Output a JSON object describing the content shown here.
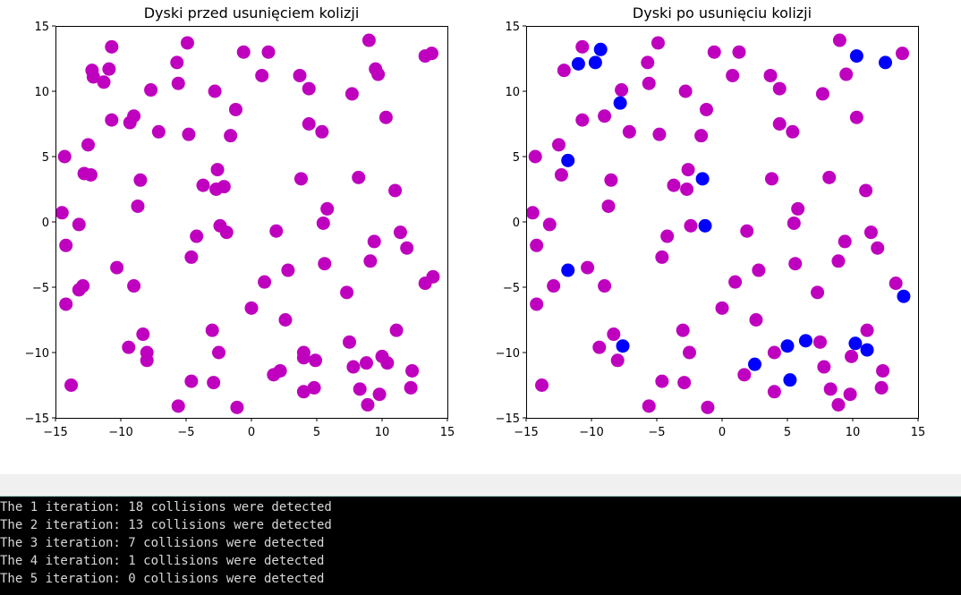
{
  "colors": {
    "disk": "#bf00bf",
    "moved_disk": "#0000ff",
    "console_bg": "#000000",
    "console_text": "#d8d8d8"
  },
  "chart_data": [
    {
      "type": "scatter",
      "title": "Dyski przed usunięciem kolizji",
      "xlim": [
        -15,
        15
      ],
      "ylim": [
        -15,
        15
      ],
      "xticks": [
        -15,
        -10,
        -5,
        0,
        5,
        10,
        15
      ],
      "yticks": [
        -15,
        -10,
        -5,
        0,
        5,
        10,
        15
      ],
      "grid": false,
      "series": [
        {
          "color": "#bf00bf",
          "points": [
            [
              -14.5,
              0.7
            ],
            [
              -14.3,
              5.0
            ],
            [
              -14.2,
              -1.8
            ],
            [
              -14.2,
              -6.3
            ],
            [
              -13.8,
              -12.5
            ],
            [
              -13.2,
              -0.2
            ],
            [
              -13.2,
              -5.2
            ],
            [
              -12.9,
              -4.9
            ],
            [
              -12.8,
              3.7
            ],
            [
              -12.5,
              5.9
            ],
            [
              -12.3,
              3.6
            ],
            [
              -12.2,
              11.6
            ],
            [
              -12.1,
              11.1
            ],
            [
              -11.3,
              10.7
            ],
            [
              -10.9,
              11.7
            ],
            [
              -10.7,
              13.4
            ],
            [
              -10.7,
              7.8
            ],
            [
              -10.3,
              -3.5
            ],
            [
              -9.4,
              -9.6
            ],
            [
              -9.3,
              7.6
            ],
            [
              -9.0,
              8.1
            ],
            [
              -9.0,
              -4.9
            ],
            [
              -8.7,
              1.2
            ],
            [
              -8.5,
              3.2
            ],
            [
              -8.3,
              -8.6
            ],
            [
              -8.0,
              -10.0
            ],
            [
              -8.0,
              -10.6
            ],
            [
              -7.7,
              10.1
            ],
            [
              -7.1,
              6.9
            ],
            [
              -5.7,
              12.2
            ],
            [
              -5.6,
              10.6
            ],
            [
              -5.6,
              -14.1
            ],
            [
              -4.9,
              13.7
            ],
            [
              -4.8,
              6.7
            ],
            [
              -4.6,
              -12.2
            ],
            [
              -4.6,
              -2.7
            ],
            [
              -4.2,
              -1.1
            ],
            [
              -3.7,
              2.8
            ],
            [
              -3.0,
              -8.3
            ],
            [
              -2.9,
              -12.3
            ],
            [
              -2.8,
              10.0
            ],
            [
              -2.7,
              2.5
            ],
            [
              -2.6,
              4.0
            ],
            [
              -2.5,
              -10.0
            ],
            [
              -2.4,
              -0.3
            ],
            [
              -2.1,
              2.7
            ],
            [
              -1.9,
              -0.8
            ],
            [
              -1.6,
              6.6
            ],
            [
              -1.2,
              8.6
            ],
            [
              -1.1,
              -14.2
            ],
            [
              -0.6,
              13.0
            ],
            [
              0.0,
              -6.6
            ],
            [
              0.8,
              11.2
            ],
            [
              1.0,
              -4.6
            ],
            [
              1.3,
              13.0
            ],
            [
              1.7,
              -11.7
            ],
            [
              1.9,
              -0.7
            ],
            [
              2.2,
              -11.4
            ],
            [
              2.6,
              -7.5
            ],
            [
              2.8,
              -3.7
            ],
            [
              3.7,
              11.2
            ],
            [
              3.8,
              3.3
            ],
            [
              4.0,
              -10.0
            ],
            [
              4.0,
              -10.4
            ],
            [
              4.0,
              -13.0
            ],
            [
              4.4,
              10.2
            ],
            [
              4.4,
              7.5
            ],
            [
              4.8,
              -12.7
            ],
            [
              4.9,
              -10.6
            ],
            [
              5.4,
              6.9
            ],
            [
              5.5,
              -0.1
            ],
            [
              5.6,
              -3.2
            ],
            [
              5.8,
              1.0
            ],
            [
              7.3,
              -5.4
            ],
            [
              7.5,
              -9.2
            ],
            [
              7.7,
              9.8
            ],
            [
              7.8,
              -11.1
            ],
            [
              8.2,
              3.4
            ],
            [
              8.3,
              -12.8
            ],
            [
              8.8,
              -10.8
            ],
            [
              8.9,
              -14.0
            ],
            [
              9.0,
              13.9
            ],
            [
              9.1,
              -3.0
            ],
            [
              9.4,
              -1.5
            ],
            [
              9.5,
              11.7
            ],
            [
              9.7,
              11.3
            ],
            [
              9.8,
              -13.2
            ],
            [
              10.0,
              -10.3
            ],
            [
              10.3,
              8.0
            ],
            [
              10.4,
              -10.8
            ],
            [
              11.0,
              2.4
            ],
            [
              11.1,
              -8.3
            ],
            [
              11.4,
              -0.8
            ],
            [
              11.9,
              -2.0
            ],
            [
              12.2,
              -12.7
            ],
            [
              12.3,
              -11.4
            ],
            [
              13.3,
              12.7
            ],
            [
              13.3,
              -4.7
            ],
            [
              13.8,
              12.9
            ],
            [
              13.9,
              -4.2
            ]
          ]
        }
      ]
    },
    {
      "type": "scatter",
      "title": "Dyski po usunięciu kolizji",
      "xlim": [
        -15,
        15
      ],
      "ylim": [
        -15,
        15
      ],
      "xticks": [
        -15,
        -10,
        -5,
        0,
        5,
        10,
        15
      ],
      "yticks": [
        -15,
        -10,
        -5,
        0,
        5,
        10,
        15
      ],
      "grid": false,
      "series": [
        {
          "color": "#bf00bf",
          "points": [
            [
              -14.5,
              0.7
            ],
            [
              -14.3,
              5.0
            ],
            [
              -14.2,
              -1.8
            ],
            [
              -14.2,
              -6.3
            ],
            [
              -13.8,
              -12.5
            ],
            [
              -13.2,
              -0.2
            ],
            [
              -12.9,
              -4.9
            ],
            [
              -12.3,
              3.6
            ],
            [
              -12.5,
              5.9
            ],
            [
              -12.1,
              11.6
            ],
            [
              -10.7,
              13.4
            ],
            [
              -10.7,
              7.8
            ],
            [
              -10.3,
              -3.5
            ],
            [
              -9.4,
              -9.6
            ],
            [
              -9.0,
              8.1
            ],
            [
              -9.0,
              -4.9
            ],
            [
              -8.7,
              1.2
            ],
            [
              -8.5,
              3.2
            ],
            [
              -8.3,
              -8.6
            ],
            [
              -8.0,
              -10.6
            ],
            [
              -7.7,
              10.1
            ],
            [
              -7.1,
              6.9
            ],
            [
              -5.7,
              12.2
            ],
            [
              -5.6,
              10.6
            ],
            [
              -5.6,
              -14.1
            ],
            [
              -4.9,
              13.7
            ],
            [
              -4.8,
              6.7
            ],
            [
              -4.6,
              -12.2
            ],
            [
              -4.6,
              -2.7
            ],
            [
              -4.2,
              -1.1
            ],
            [
              -3.7,
              2.8
            ],
            [
              -3.0,
              -8.3
            ],
            [
              -2.9,
              -12.3
            ],
            [
              -2.8,
              10.0
            ],
            [
              -2.7,
              2.5
            ],
            [
              -2.6,
              4.0
            ],
            [
              -2.5,
              -10.0
            ],
            [
              -2.4,
              -0.3
            ],
            [
              -1.6,
              6.6
            ],
            [
              -1.2,
              8.6
            ],
            [
              -1.1,
              -14.2
            ],
            [
              -0.6,
              13.0
            ],
            [
              0.0,
              -6.6
            ],
            [
              0.8,
              11.2
            ],
            [
              1.0,
              -4.6
            ],
            [
              1.3,
              13.0
            ],
            [
              1.7,
              -11.7
            ],
            [
              1.9,
              -0.7
            ],
            [
              2.6,
              -7.5
            ],
            [
              2.8,
              -3.7
            ],
            [
              3.7,
              11.2
            ],
            [
              3.8,
              3.3
            ],
            [
              4.0,
              -10.0
            ],
            [
              4.0,
              -13.0
            ],
            [
              4.4,
              10.2
            ],
            [
              4.4,
              7.5
            ],
            [
              5.4,
              6.9
            ],
            [
              5.5,
              -0.1
            ],
            [
              5.6,
              -3.2
            ],
            [
              5.8,
              1.0
            ],
            [
              7.3,
              -5.4
            ],
            [
              7.5,
              -9.2
            ],
            [
              7.7,
              9.8
            ],
            [
              7.8,
              -11.1
            ],
            [
              8.2,
              3.4
            ],
            [
              8.3,
              -12.8
            ],
            [
              8.9,
              -14.0
            ],
            [
              8.9,
              -3.0
            ],
            [
              9.0,
              13.9
            ],
            [
              9.4,
              -1.5
            ],
            [
              9.5,
              11.3
            ],
            [
              9.8,
              -13.2
            ],
            [
              9.9,
              -10.3
            ],
            [
              10.3,
              8.0
            ],
            [
              11.0,
              2.4
            ],
            [
              11.1,
              -8.3
            ],
            [
              11.4,
              -0.8
            ],
            [
              11.9,
              -2.0
            ],
            [
              12.2,
              -12.7
            ],
            [
              12.3,
              -11.4
            ],
            [
              13.3,
              -4.7
            ],
            [
              13.8,
              12.9
            ]
          ]
        },
        {
          "color": "#0000ff",
          "points": [
            [
              -11.0,
              12.1
            ],
            [
              -9.7,
              12.2
            ],
            [
              -9.3,
              13.2
            ],
            [
              -11.8,
              4.7
            ],
            [
              -7.8,
              9.1
            ],
            [
              -1.5,
              3.3
            ],
            [
              -1.3,
              -0.3
            ],
            [
              -11.8,
              -3.7
            ],
            [
              -7.6,
              -9.5
            ],
            [
              2.5,
              -10.9
            ],
            [
              5.0,
              -9.5
            ],
            [
              5.2,
              -12.1
            ],
            [
              6.4,
              -9.1
            ],
            [
              10.2,
              -9.3
            ],
            [
              11.1,
              -9.8
            ],
            [
              10.3,
              12.7
            ],
            [
              12.5,
              12.2
            ],
            [
              13.9,
              -5.7
            ]
          ]
        }
      ]
    }
  ],
  "console": {
    "lines": [
      "The 1 iteration: 18 collisions were detected",
      "The 2 iteration: 13 collisions were detected",
      "The 3 iteration: 7 collisions were detected",
      "The 4 iteration: 1 collisions were detected",
      "The 5 iteration: 0 collisions were detected"
    ]
  }
}
